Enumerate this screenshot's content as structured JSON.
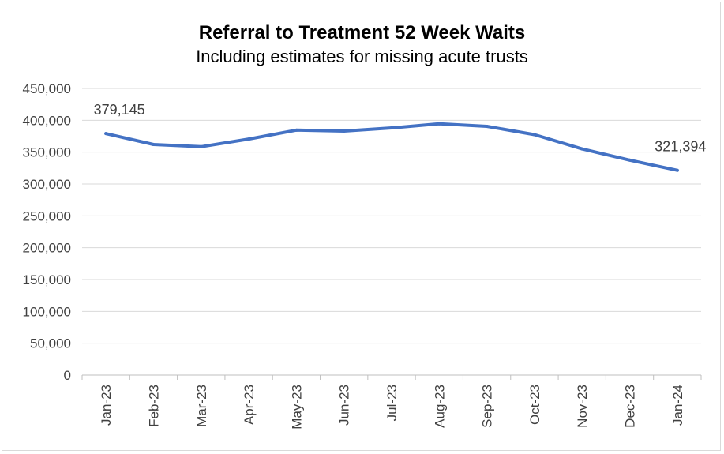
{
  "chart_data": {
    "type": "line",
    "title": "Referral to Treatment 52 Week Waits",
    "subtitle": "Including estimates for missing acute trusts",
    "categories": [
      "Jan-23",
      "Feb-23",
      "Mar-23",
      "Apr-23",
      "May-23",
      "Jun-23",
      "Jul-23",
      "Aug-23",
      "Sep-23",
      "Oct-23",
      "Nov-23",
      "Dec-23",
      "Jan-24"
    ],
    "series": [
      {
        "values": [
          379145,
          362000,
          358500,
          370500,
          384500,
          383000,
          388000,
          394500,
          390500,
          377500,
          355000,
          337500,
          321394
        ],
        "color": "#4472c4"
      }
    ],
    "ylim": [
      0,
      450000
    ],
    "yticks": [
      0,
      50000,
      100000,
      150000,
      200000,
      250000,
      300000,
      350000,
      400000,
      450000
    ],
    "ytick_labels": [
      "0",
      "50,000",
      "100,000",
      "150,000",
      "200,000",
      "250,000",
      "300,000",
      "350,000",
      "400,000",
      "450,000"
    ],
    "data_labels": [
      {
        "index": 0,
        "text": "379,145"
      },
      {
        "index": 12,
        "text": "321,394"
      }
    ],
    "grid": true,
    "legend": "none"
  }
}
